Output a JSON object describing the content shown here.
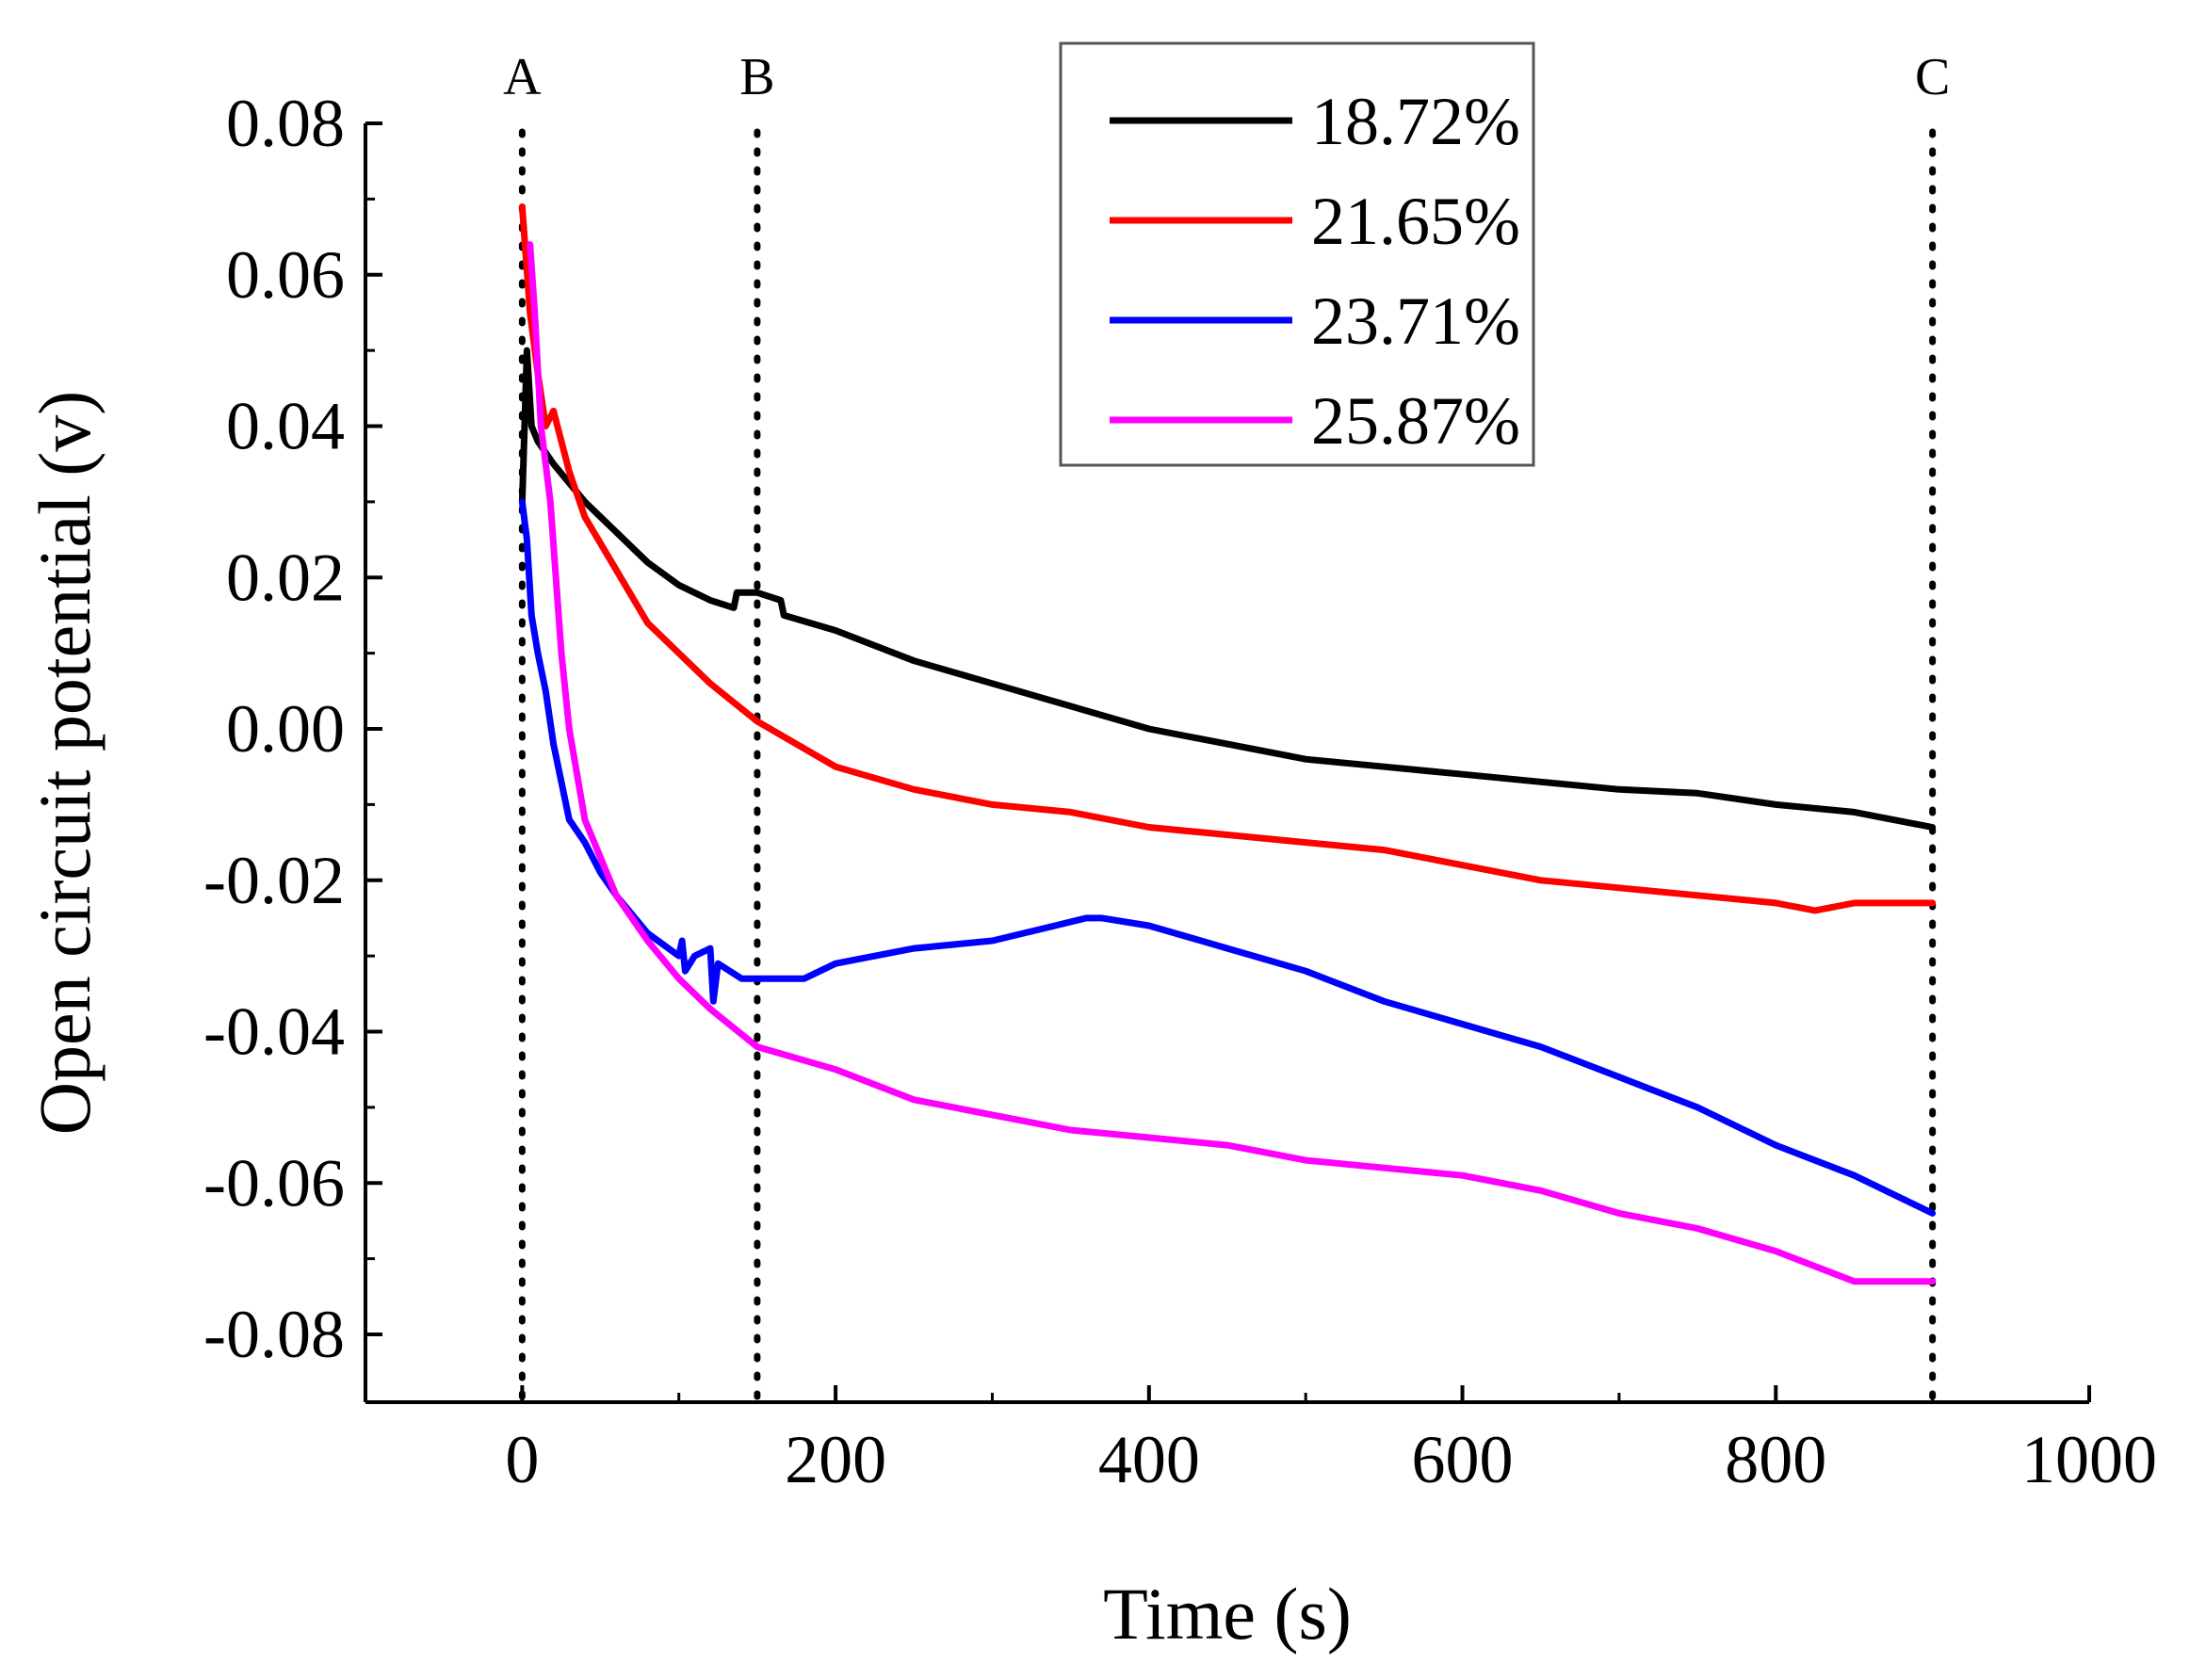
{
  "chart_data": {
    "type": "line",
    "title": "",
    "xlabel": "Time (s)",
    "ylabel": "Open circuit potential (v)",
    "xlim": [
      -100,
      1000
    ],
    "ylim": [
      -0.09,
      0.08
    ],
    "x_ticks": [
      0,
      200,
      400,
      600,
      800,
      1000
    ],
    "y_ticks": [
      0.08,
      0.06,
      0.04,
      0.02,
      0.0,
      -0.02,
      -0.04,
      -0.06,
      -0.08
    ],
    "x_tick_labels": [
      "0",
      "200",
      "400",
      "600",
      "800",
      "1000"
    ],
    "y_tick_labels": [
      "0.08",
      "0.06",
      "0.04",
      "0.02",
      "0.00",
      "-0.02",
      "-0.04",
      "-0.06",
      "-0.08"
    ],
    "grid": false,
    "legend_position": "top-right",
    "markers": [
      {
        "label": "A",
        "x": 0
      },
      {
        "label": "B",
        "x": 150
      },
      {
        "label": "C",
        "x": 900
      }
    ],
    "series": [
      {
        "name": "18.72%",
        "color": "#000000",
        "points": [
          [
            0,
            0.03
          ],
          [
            3,
            0.05
          ],
          [
            6,
            0.04
          ],
          [
            10,
            0.038
          ],
          [
            20,
            0.035
          ],
          [
            40,
            0.03
          ],
          [
            60,
            0.026
          ],
          [
            80,
            0.022
          ],
          [
            100,
            0.019
          ],
          [
            120,
            0.017
          ],
          [
            135,
            0.016
          ],
          [
            137,
            0.018
          ],
          [
            150,
            0.018
          ],
          [
            165,
            0.017
          ],
          [
            167,
            0.015
          ],
          [
            200,
            0.013
          ],
          [
            250,
            0.009
          ],
          [
            300,
            0.006
          ],
          [
            350,
            0.003
          ],
          [
            400,
            0.0
          ],
          [
            450,
            -0.002
          ],
          [
            500,
            -0.004
          ],
          [
            550,
            -0.005
          ],
          [
            600,
            -0.006
          ],
          [
            650,
            -0.007
          ],
          [
            700,
            -0.008
          ],
          [
            750,
            -0.0085
          ],
          [
            800,
            -0.01
          ],
          [
            850,
            -0.011
          ],
          [
            900,
            -0.013
          ]
        ]
      },
      {
        "name": "21.65%",
        "color": "#ff0000",
        "points": [
          [
            0,
            0.069
          ],
          [
            5,
            0.055
          ],
          [
            10,
            0.047
          ],
          [
            15,
            0.04
          ],
          [
            20,
            0.042
          ],
          [
            30,
            0.034
          ],
          [
            40,
            0.028
          ],
          [
            60,
            0.021
          ],
          [
            80,
            0.014
          ],
          [
            100,
            0.01
          ],
          [
            120,
            0.006
          ],
          [
            150,
            0.001
          ],
          [
            200,
            -0.005
          ],
          [
            250,
            -0.008
          ],
          [
            300,
            -0.01
          ],
          [
            350,
            -0.011
          ],
          [
            400,
            -0.013
          ],
          [
            450,
            -0.014
          ],
          [
            500,
            -0.015
          ],
          [
            550,
            -0.016
          ],
          [
            600,
            -0.018
          ],
          [
            650,
            -0.02
          ],
          [
            700,
            -0.021
          ],
          [
            750,
            -0.022
          ],
          [
            800,
            -0.023
          ],
          [
            825,
            -0.024
          ],
          [
            850,
            -0.023
          ],
          [
            900,
            -0.023
          ]
        ]
      },
      {
        "name": "23.71%",
        "color": "#0000ff",
        "points": [
          [
            0,
            0.03
          ],
          [
            3,
            0.025
          ],
          [
            6,
            0.015
          ],
          [
            10,
            0.01
          ],
          [
            15,
            0.005
          ],
          [
            20,
            -0.002
          ],
          [
            30,
            -0.012
          ],
          [
            40,
            -0.015
          ],
          [
            50,
            -0.019
          ],
          [
            60,
            -0.022
          ],
          [
            80,
            -0.027
          ],
          [
            100,
            -0.03
          ],
          [
            102,
            -0.028
          ],
          [
            104,
            -0.032
          ],
          [
            110,
            -0.03
          ],
          [
            120,
            -0.029
          ],
          [
            122,
            -0.036
          ],
          [
            125,
            -0.031
          ],
          [
            140,
            -0.033
          ],
          [
            160,
            -0.033
          ],
          [
            180,
            -0.033
          ],
          [
            200,
            -0.031
          ],
          [
            250,
            -0.029
          ],
          [
            300,
            -0.028
          ],
          [
            340,
            -0.026
          ],
          [
            360,
            -0.025
          ],
          [
            370,
            -0.025
          ],
          [
            400,
            -0.026
          ],
          [
            450,
            -0.029
          ],
          [
            500,
            -0.032
          ],
          [
            550,
            -0.036
          ],
          [
            600,
            -0.039
          ],
          [
            650,
            -0.042
          ],
          [
            700,
            -0.046
          ],
          [
            750,
            -0.05
          ],
          [
            800,
            -0.055
          ],
          [
            850,
            -0.059
          ],
          [
            900,
            -0.064
          ]
        ]
      },
      {
        "name": "25.87%",
        "color": "#ff00ff",
        "points": [
          [
            5,
            0.064
          ],
          [
            8,
            0.055
          ],
          [
            12,
            0.04
          ],
          [
            18,
            0.03
          ],
          [
            25,
            0.01
          ],
          [
            30,
            0.0
          ],
          [
            40,
            -0.012
          ],
          [
            50,
            -0.017
          ],
          [
            60,
            -0.022
          ],
          [
            80,
            -0.028
          ],
          [
            100,
            -0.033
          ],
          [
            120,
            -0.037
          ],
          [
            150,
            -0.042
          ],
          [
            200,
            -0.045
          ],
          [
            250,
            -0.049
          ],
          [
            300,
            -0.051
          ],
          [
            350,
            -0.053
          ],
          [
            400,
            -0.054
          ],
          [
            450,
            -0.055
          ],
          [
            500,
            -0.057
          ],
          [
            550,
            -0.058
          ],
          [
            600,
            -0.059
          ],
          [
            650,
            -0.061
          ],
          [
            700,
            -0.064
          ],
          [
            750,
            -0.066
          ],
          [
            800,
            -0.069
          ],
          [
            850,
            -0.073
          ],
          [
            900,
            -0.073
          ]
        ]
      }
    ]
  }
}
